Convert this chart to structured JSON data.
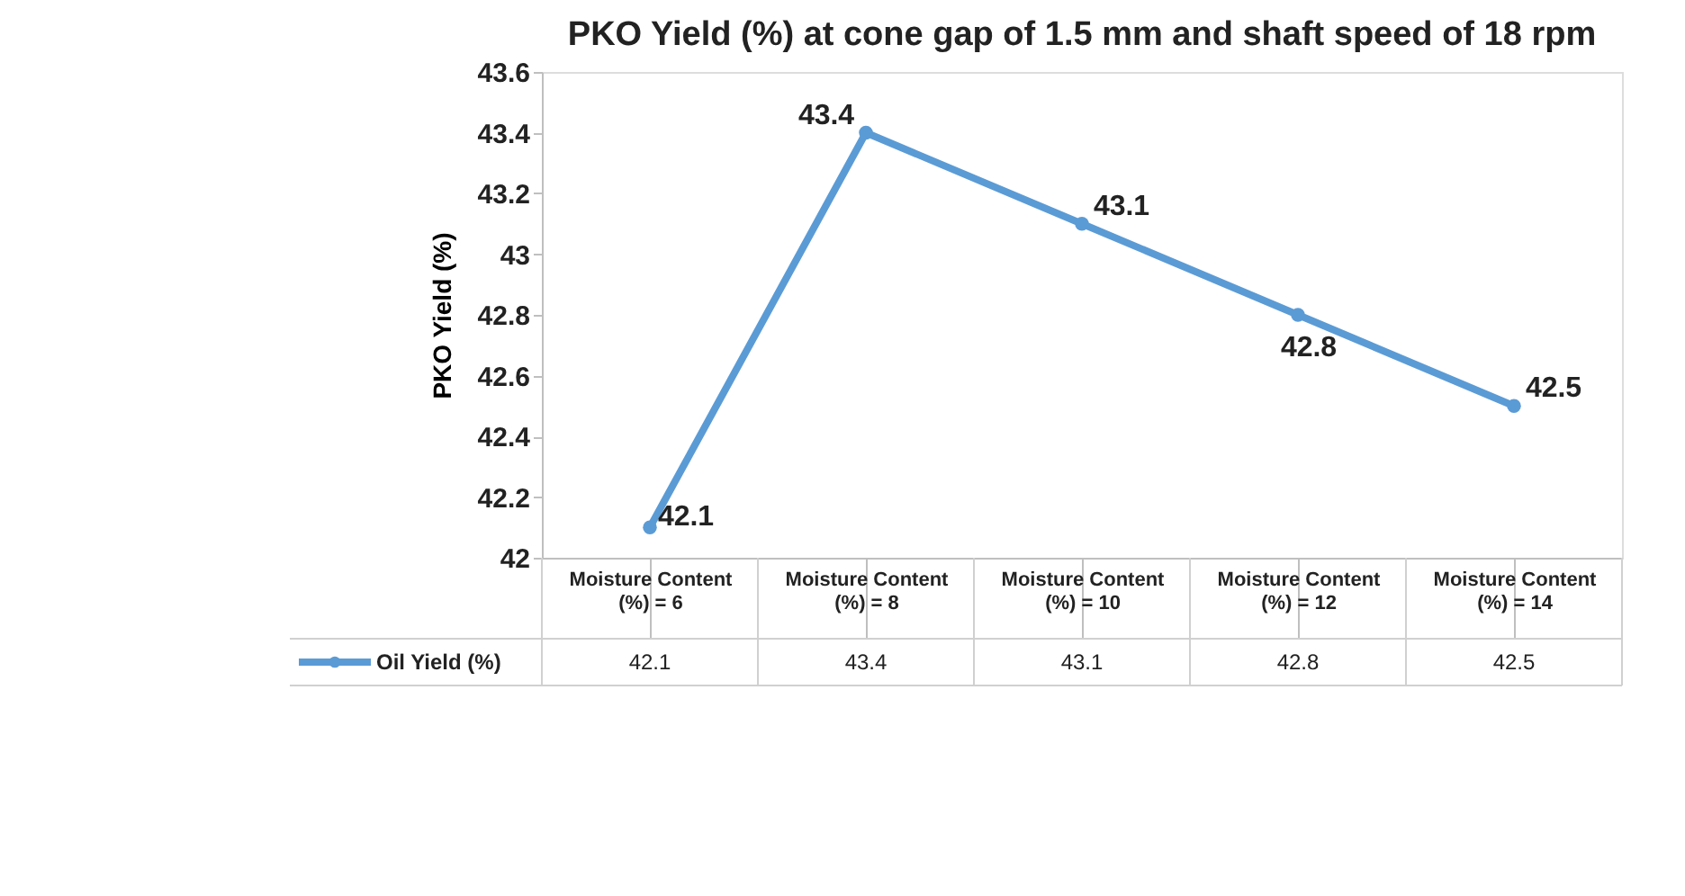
{
  "chart_data": {
    "type": "line",
    "title": "PKO Yield (%) at  cone gap of 1.5 mm and shaft speed of 18 rpm",
    "ylabel": "PKO Yield (%)",
    "categories": [
      "Moisture Content\n(%) = 6",
      "Moisture Content\n(%) = 8",
      "Moisture Content\n(%) = 10",
      "Moisture Content\n(%) = 12",
      "Moisture Content\n(%) = 14"
    ],
    "series": [
      {
        "name": "Oil Yield (%)",
        "color": "#5b9bd5",
        "values": [
          42.1,
          43.4,
          43.1,
          42.8,
          42.5
        ],
        "value_labels": [
          "42.1",
          "43.4",
          "43.1",
          "42.8",
          "42.5"
        ]
      }
    ],
    "ylim": [
      42,
      43.6
    ],
    "yticks": [
      42,
      42.2,
      42.4,
      42.6,
      42.8,
      43,
      43.2,
      43.4,
      43.6
    ],
    "data_labels": true,
    "annotations": [
      "42.1",
      "43.4",
      "43.1",
      "42.8",
      "42.5"
    ],
    "marker": "circle",
    "grid": false,
    "legend": "bottom"
  }
}
